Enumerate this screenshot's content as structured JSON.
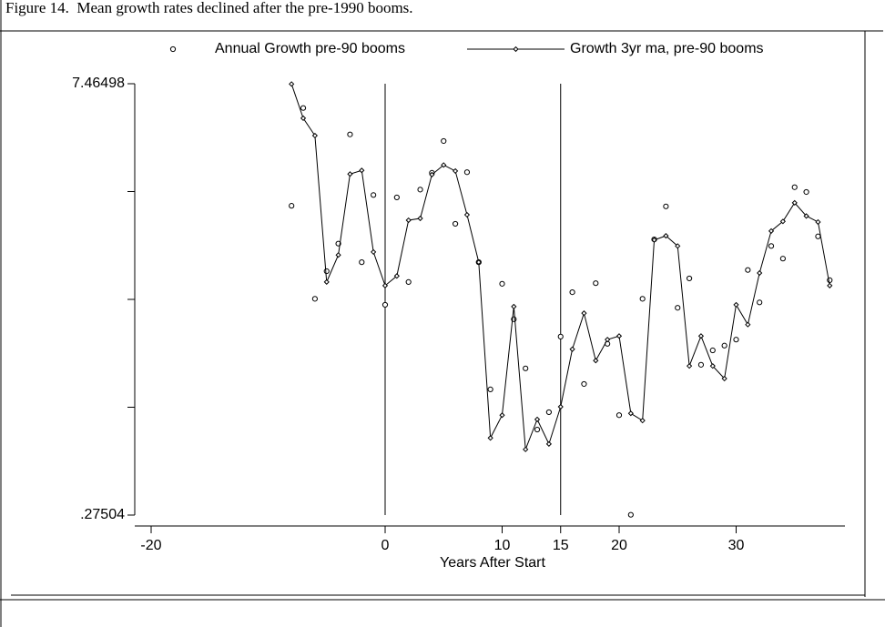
{
  "chart_data": {
    "type": "scatter-line",
    "title": "Figure 14.  Mean growth rates declined after the pre-1990 booms.",
    "xlabel": "Years After Start",
    "x": [
      -8,
      -7,
      -6,
      -5,
      -4,
      -3,
      -2,
      -1,
      0,
      1,
      2,
      3,
      4,
      5,
      6,
      7,
      8,
      9,
      10,
      11,
      12,
      13,
      14,
      15,
      16,
      17,
      18,
      19,
      20,
      21,
      22,
      23,
      24,
      25,
      26,
      27,
      28,
      29,
      30,
      31,
      32,
      33,
      34,
      35,
      36,
      37,
      38
    ],
    "series": [
      {
        "name": "Annual Growth pre-90 booms",
        "style": "points",
        "color": "#000000",
        "values": [
          5.43,
          7.06,
          3.88,
          4.34,
          4.8,
          6.62,
          4.49,
          5.61,
          3.78,
          5.57,
          4.16,
          5.7,
          5.98,
          6.51,
          5.13,
          5.99,
          4.49,
          2.37,
          4.13,
          3.54,
          2.72,
          1.7,
          1.99,
          3.25,
          3.99,
          2.46,
          4.14,
          3.13,
          1.94,
          0.28,
          3.88,
          4.87,
          5.42,
          3.73,
          4.22,
          2.78,
          3.02,
          3.1,
          3.2,
          4.36,
          3.82,
          4.76,
          4.55,
          5.74,
          5.66,
          4.92,
          4.19
        ]
      },
      {
        "name": "Growth 3yr ma, pre-90 booms",
        "style": "line-diamond",
        "color": "#000000",
        "values": [
          7.46,
          6.89,
          6.6,
          4.16,
          4.61,
          5.96,
          6.02,
          4.66,
          4.1,
          4.26,
          5.19,
          5.22,
          5.95,
          6.11,
          6.01,
          5.28,
          4.49,
          1.56,
          1.94,
          3.75,
          1.37,
          1.87,
          1.46,
          2.08,
          3.04,
          3.64,
          2.85,
          3.2,
          3.26,
          1.97,
          1.85,
          4.86,
          4.93,
          4.76,
          2.76,
          3.26,
          2.76,
          2.55,
          3.78,
          3.45,
          4.31,
          5.01,
          5.17,
          5.48,
          5.26,
          5.16,
          4.1
        ]
      }
    ],
    "xlim": [
      -21.4,
      39.3
    ],
    "xticks": [
      -20,
      0,
      10,
      15,
      20,
      30
    ],
    "ylim": [
      0.27504,
      7.46498
    ],
    "yticks": [
      {
        "value": 7.46498,
        "label": "7.46498"
      },
      {
        "value": 0.27504,
        "label": ".27504"
      }
    ],
    "yminor_ticks": [
      5.6675,
      3.87001,
      2.0725
    ],
    "xlines": [
      0,
      15
    ],
    "grid": false
  }
}
